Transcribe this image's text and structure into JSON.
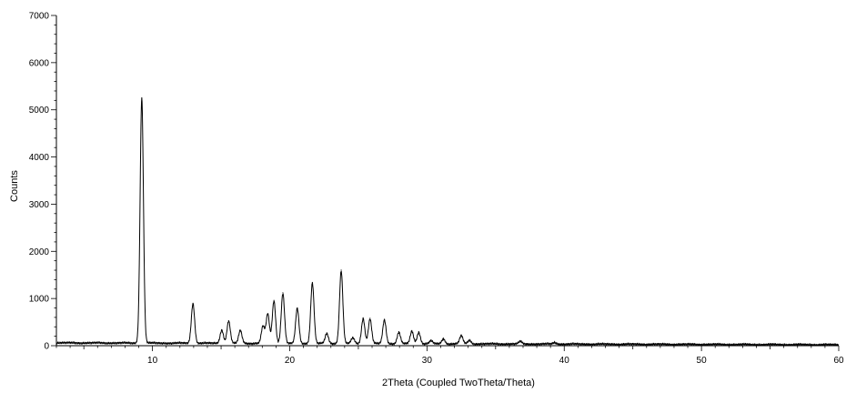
{
  "chart_data": {
    "type": "line",
    "title": "",
    "xlabel": "2Theta (Coupled TwoTheta/Theta)",
    "ylabel": "Counts",
    "xlim": [
      3,
      60
    ],
    "ylim": [
      0,
      7000
    ],
    "x_ticks": [
      10,
      20,
      30,
      40,
      50,
      60
    ],
    "x_tick_labels": [
      "10",
      "20",
      "30",
      "40",
      "50",
      "60"
    ],
    "y_ticks": [
      0,
      1000,
      2000,
      3000,
      4000,
      5000,
      6000,
      7000
    ],
    "y_tick_labels": [
      "0",
      "1000",
      "2000",
      "3000",
      "4000",
      "5000",
      "6000",
      "7000"
    ],
    "grid": false,
    "line_color": "#000000",
    "baseline": 60,
    "peaks": [
      {
        "x": 9.22,
        "y": 5250
      },
      {
        "x": 12.95,
        "y": 900
      },
      {
        "x": 15.05,
        "y": 340
      },
      {
        "x": 15.55,
        "y": 530
      },
      {
        "x": 16.4,
        "y": 330
      },
      {
        "x": 18.05,
        "y": 420
      },
      {
        "x": 18.4,
        "y": 680
      },
      {
        "x": 18.85,
        "y": 960
      },
      {
        "x": 19.5,
        "y": 1120
      },
      {
        "x": 20.55,
        "y": 800
      },
      {
        "x": 21.65,
        "y": 1340
      },
      {
        "x": 22.7,
        "y": 270
      },
      {
        "x": 23.75,
        "y": 1600
      },
      {
        "x": 24.6,
        "y": 180
      },
      {
        "x": 25.35,
        "y": 590
      },
      {
        "x": 25.85,
        "y": 580
      },
      {
        "x": 26.9,
        "y": 560
      },
      {
        "x": 27.95,
        "y": 300
      },
      {
        "x": 28.9,
        "y": 320
      },
      {
        "x": 29.4,
        "y": 300
      },
      {
        "x": 30.3,
        "y": 120
      },
      {
        "x": 31.2,
        "y": 160
      },
      {
        "x": 32.5,
        "y": 230
      },
      {
        "x": 33.1,
        "y": 130
      },
      {
        "x": 36.8,
        "y": 110
      },
      {
        "x": 39.3,
        "y": 90
      }
    ]
  }
}
